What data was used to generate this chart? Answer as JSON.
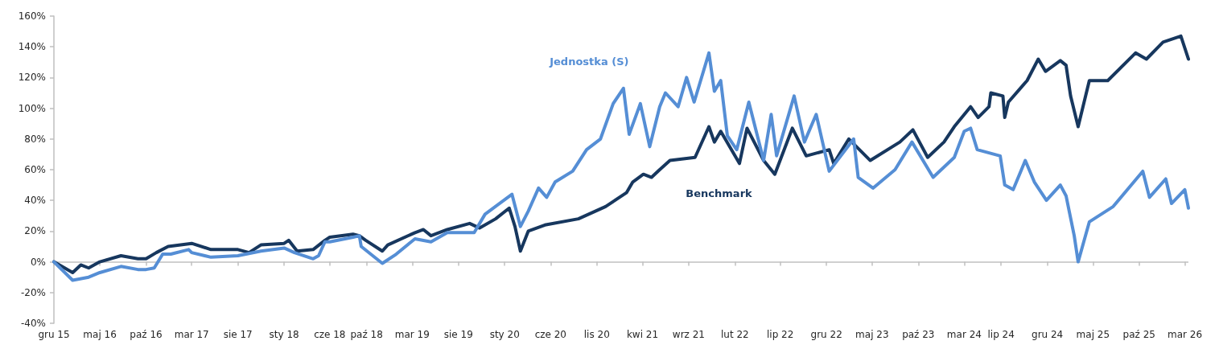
{
  "chart_data": {
    "type": "line",
    "xlim": [
      "2015-12-01",
      "2026-03-13"
    ],
    "xticks": [
      {
        "value": "2015-12-01",
        "label": "gru 15"
      },
      {
        "value": "2016-05-01",
        "label": "maj 16"
      },
      {
        "value": "2016-10-01",
        "label": "paź 16"
      },
      {
        "value": "2017-03-01",
        "label": "mar 17"
      },
      {
        "value": "2017-08-01",
        "label": "sie 17"
      },
      {
        "value": "2018-01-01",
        "label": "sty 18"
      },
      {
        "value": "2018-06-01",
        "label": "cze 18"
      },
      {
        "value": "2018-10-01",
        "label": "paź 18"
      },
      {
        "value": "2019-03-01",
        "label": "mar 19"
      },
      {
        "value": "2019-08-01",
        "label": "sie 19"
      },
      {
        "value": "2020-01-01",
        "label": "sty 20"
      },
      {
        "value": "2020-06-01",
        "label": "cze 20"
      },
      {
        "value": "2020-11-01",
        "label": "lis 20"
      },
      {
        "value": "2021-04-01",
        "label": "kwi 21"
      },
      {
        "value": "2021-09-01",
        "label": "wrz 21"
      },
      {
        "value": "2022-02-01",
        "label": "lut 22"
      },
      {
        "value": "2022-07-01",
        "label": "lip 22"
      },
      {
        "value": "2022-12-01",
        "label": "gru 22"
      },
      {
        "value": "2023-05-01",
        "label": "maj 23"
      },
      {
        "value": "2023-10-01",
        "label": "paź 23"
      },
      {
        "value": "2024-03-01",
        "label": "mar 24"
      },
      {
        "value": "2024-07-01",
        "label": "lip 24"
      },
      {
        "value": "2024-12-01",
        "label": "gru 24"
      },
      {
        "value": "2025-05-01",
        "label": "maj 25"
      },
      {
        "value": "2025-10-01",
        "label": "paź 25"
      },
      {
        "value": "2026-03-01",
        "label": "mar 26"
      }
    ],
    "ylim": [
      -40,
      160
    ],
    "yticks": [
      {
        "value": -40,
        "label": "-40%"
      },
      {
        "value": -20,
        "label": "-20%"
      },
      {
        "value": 0,
        "label": "0%"
      },
      {
        "value": 20,
        "label": "20%"
      },
      {
        "value": 40,
        "label": "40%"
      },
      {
        "value": 60,
        "label": "60%"
      },
      {
        "value": 80,
        "label": "80%"
      },
      {
        "value": 100,
        "label": "100%"
      },
      {
        "value": 120,
        "label": "120%"
      },
      {
        "value": 140,
        "label": "140%"
      },
      {
        "value": 160,
        "label": "160%"
      }
    ],
    "grid": false,
    "ref_lines": [
      {
        "axis": "y",
        "value": 0,
        "color": "#bfbfbf"
      }
    ],
    "legend": false,
    "series": [
      {
        "name": "Jednostka (S)",
        "color": "#558ed5",
        "x": [
          "2015-12-01",
          "2016-02-01",
          "2016-03-25",
          "2016-05-01",
          "2016-07-10",
          "2016-09-04",
          "2016-10-01",
          "2016-10-28",
          "2016-11-25",
          "2016-12-22",
          "2017-02-19",
          "2017-03-01",
          "2017-05-04",
          "2017-08-01",
          "2017-10-16",
          "2018-01-01",
          "2018-02-04",
          "2018-04-07",
          "2018-04-25",
          "2018-05-16",
          "2018-06-01",
          "2018-08-17",
          "2018-09-07",
          "2018-09-13",
          "2018-11-22",
          "2019-01-07",
          "2019-03-10",
          "2019-05-02",
          "2019-06-25",
          "2019-09-22",
          "2019-10-28",
          "2020-01-25",
          "2020-02-22",
          "2020-03-19",
          "2020-04-22",
          "2020-05-19",
          "2020-06-16",
          "2020-08-13",
          "2020-09-28",
          "2020-11-13",
          "2020-12-25",
          "2021-01-28",
          "2021-02-16",
          "2021-03-25",
          "2021-04-25",
          "2021-05-28",
          "2021-06-16",
          "2021-07-28",
          "2021-08-25",
          "2021-09-19",
          "2021-11-07",
          "2021-11-25",
          "2021-12-16",
          "2022-01-07",
          "2022-02-07",
          "2022-03-19",
          "2022-05-07",
          "2022-06-01",
          "2022-06-19",
          "2022-08-16",
          "2022-09-19",
          "2022-10-28",
          "2022-12-10",
          "2023-03-01",
          "2023-03-16",
          "2023-05-04",
          "2023-07-16",
          "2023-09-10",
          "2023-11-19",
          "2024-01-28",
          "2024-03-01",
          "2024-03-22",
          "2024-04-13",
          "2024-06-28",
          "2024-07-13",
          "2024-08-10",
          "2024-09-19",
          "2024-10-19",
          "2024-11-28",
          "2025-01-13",
          "2025-02-01",
          "2025-02-28",
          "2025-03-13",
          "2025-04-19",
          "2025-07-07",
          "2025-10-13",
          "2025-11-04",
          "2025-12-28",
          "2026-01-16",
          "2026-03-01",
          "2026-03-13"
        ],
        "values": [
          0,
          -12,
          -10,
          -7,
          -3,
          -5,
          -5,
          -4,
          5,
          5,
          8,
          6,
          3,
          4,
          7,
          9,
          6,
          2,
          4,
          13,
          13,
          16,
          17,
          10,
          -1,
          5,
          15,
          13,
          19,
          19,
          31,
          44,
          23,
          33,
          48,
          42,
          52,
          59,
          73,
          80,
          103,
          113,
          83,
          103,
          75,
          101,
          110,
          101,
          120,
          104,
          136,
          111,
          118,
          82,
          73,
          104,
          66,
          96,
          69,
          108,
          78,
          96,
          59,
          80,
          55,
          48,
          60,
          78,
          55,
          68,
          85,
          87,
          73,
          69,
          50,
          47,
          66,
          52,
          40,
          50,
          43,
          17,
          0,
          26,
          36,
          59,
          42,
          54,
          38,
          47,
          35
        ]
      },
      {
        "name": "Benchmark",
        "color": "#17375e",
        "x": [
          "2015-12-01",
          "2016-02-01",
          "2016-02-28",
          "2016-03-25",
          "2016-05-01",
          "2016-07-10",
          "2016-09-04",
          "2016-10-01",
          "2016-11-04",
          "2016-12-13",
          "2017-03-01",
          "2017-05-04",
          "2017-08-01",
          "2017-09-07",
          "2017-10-16",
          "2018-01-01",
          "2018-01-16",
          "2018-02-13",
          "2018-04-07",
          "2018-05-16",
          "2018-06-01",
          "2018-08-17",
          "2018-09-07",
          "2018-09-28",
          "2018-11-22",
          "2018-12-10",
          "2019-03-10",
          "2019-04-07",
          "2019-05-02",
          "2019-06-25",
          "2019-09-07",
          "2019-10-10",
          "2019-12-02",
          "2020-01-16",
          "2020-02-04",
          "2020-02-22",
          "2020-03-19",
          "2020-05-13",
          "2020-09-01",
          "2020-11-30",
          "2021-02-07",
          "2021-02-28",
          "2021-04-04",
          "2021-05-01",
          "2021-05-28",
          "2021-07-01",
          "2021-09-22",
          "2021-11-07",
          "2021-11-25",
          "2021-12-16",
          "2022-02-16",
          "2022-03-13",
          "2022-05-07",
          "2022-06-13",
          "2022-08-10",
          "2022-09-25",
          "2022-12-10",
          "2022-12-25",
          "2023-02-13",
          "2023-04-25",
          "2023-08-01",
          "2023-09-13",
          "2023-11-01",
          "2023-12-25",
          "2024-01-28",
          "2024-03-22",
          "2024-04-16",
          "2024-05-22",
          "2024-05-28",
          "2024-07-07",
          "2024-07-13",
          "2024-07-25",
          "2024-09-25",
          "2024-11-01",
          "2024-11-25",
          "2025-01-13",
          "2025-02-01",
          "2025-02-16",
          "2025-03-13",
          "2025-04-19",
          "2025-06-19",
          "2025-09-19",
          "2025-10-25",
          "2025-12-19",
          "2026-02-16",
          "2026-03-13"
        ],
        "values": [
          0,
          -7,
          -2,
          -4,
          0,
          4,
          2,
          2,
          6,
          10,
          12,
          8,
          8,
          6,
          11,
          12,
          14,
          7,
          8,
          14,
          16,
          18,
          17,
          14,
          7,
          11,
          19,
          21,
          17,
          21,
          25,
          22,
          28,
          35,
          23,
          7,
          20,
          24,
          28,
          36,
          45,
          52,
          57,
          55,
          60,
          66,
          68,
          88,
          78,
          85,
          64,
          87,
          66,
          57,
          87,
          69,
          73,
          64,
          80,
          66,
          78,
          86,
          68,
          78,
          88,
          101,
          94,
          101,
          110,
          108,
          94,
          104,
          118,
          132,
          124,
          131,
          128,
          108,
          88,
          118,
          118,
          136,
          132,
          143,
          147,
          132
        ]
      }
    ]
  }
}
